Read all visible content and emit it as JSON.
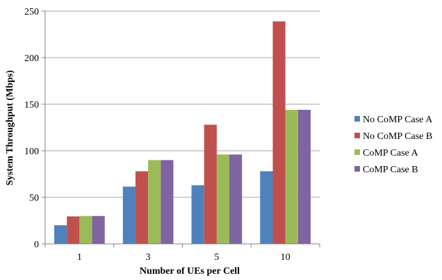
{
  "chart_data": {
    "type": "bar",
    "title": "",
    "xlabel": "Number of UEs per Cell",
    "ylabel": "System Throughput (Mbps)",
    "categories": [
      "1",
      "3",
      "5",
      "10"
    ],
    "ylim": [
      0,
      250
    ],
    "yticks": [
      "0",
      "50",
      "100",
      "150",
      "200",
      "250"
    ],
    "grid": true,
    "legend_position": "right",
    "series": [
      {
        "name": "No CoMP Case A",
        "color": "#4f81bd",
        "values": [
          20,
          61.5,
          63,
          78
        ]
      },
      {
        "name": "No CoMP Case B",
        "color": "#c0504d",
        "values": [
          29.5,
          78,
          128,
          239
        ]
      },
      {
        "name": "CoMP Case A",
        "color": "#9bbb59",
        "values": [
          30,
          90,
          96,
          144
        ]
      },
      {
        "name": "CoMP Case B",
        "color": "#8064a2",
        "values": [
          30,
          90,
          96,
          144
        ]
      }
    ]
  }
}
